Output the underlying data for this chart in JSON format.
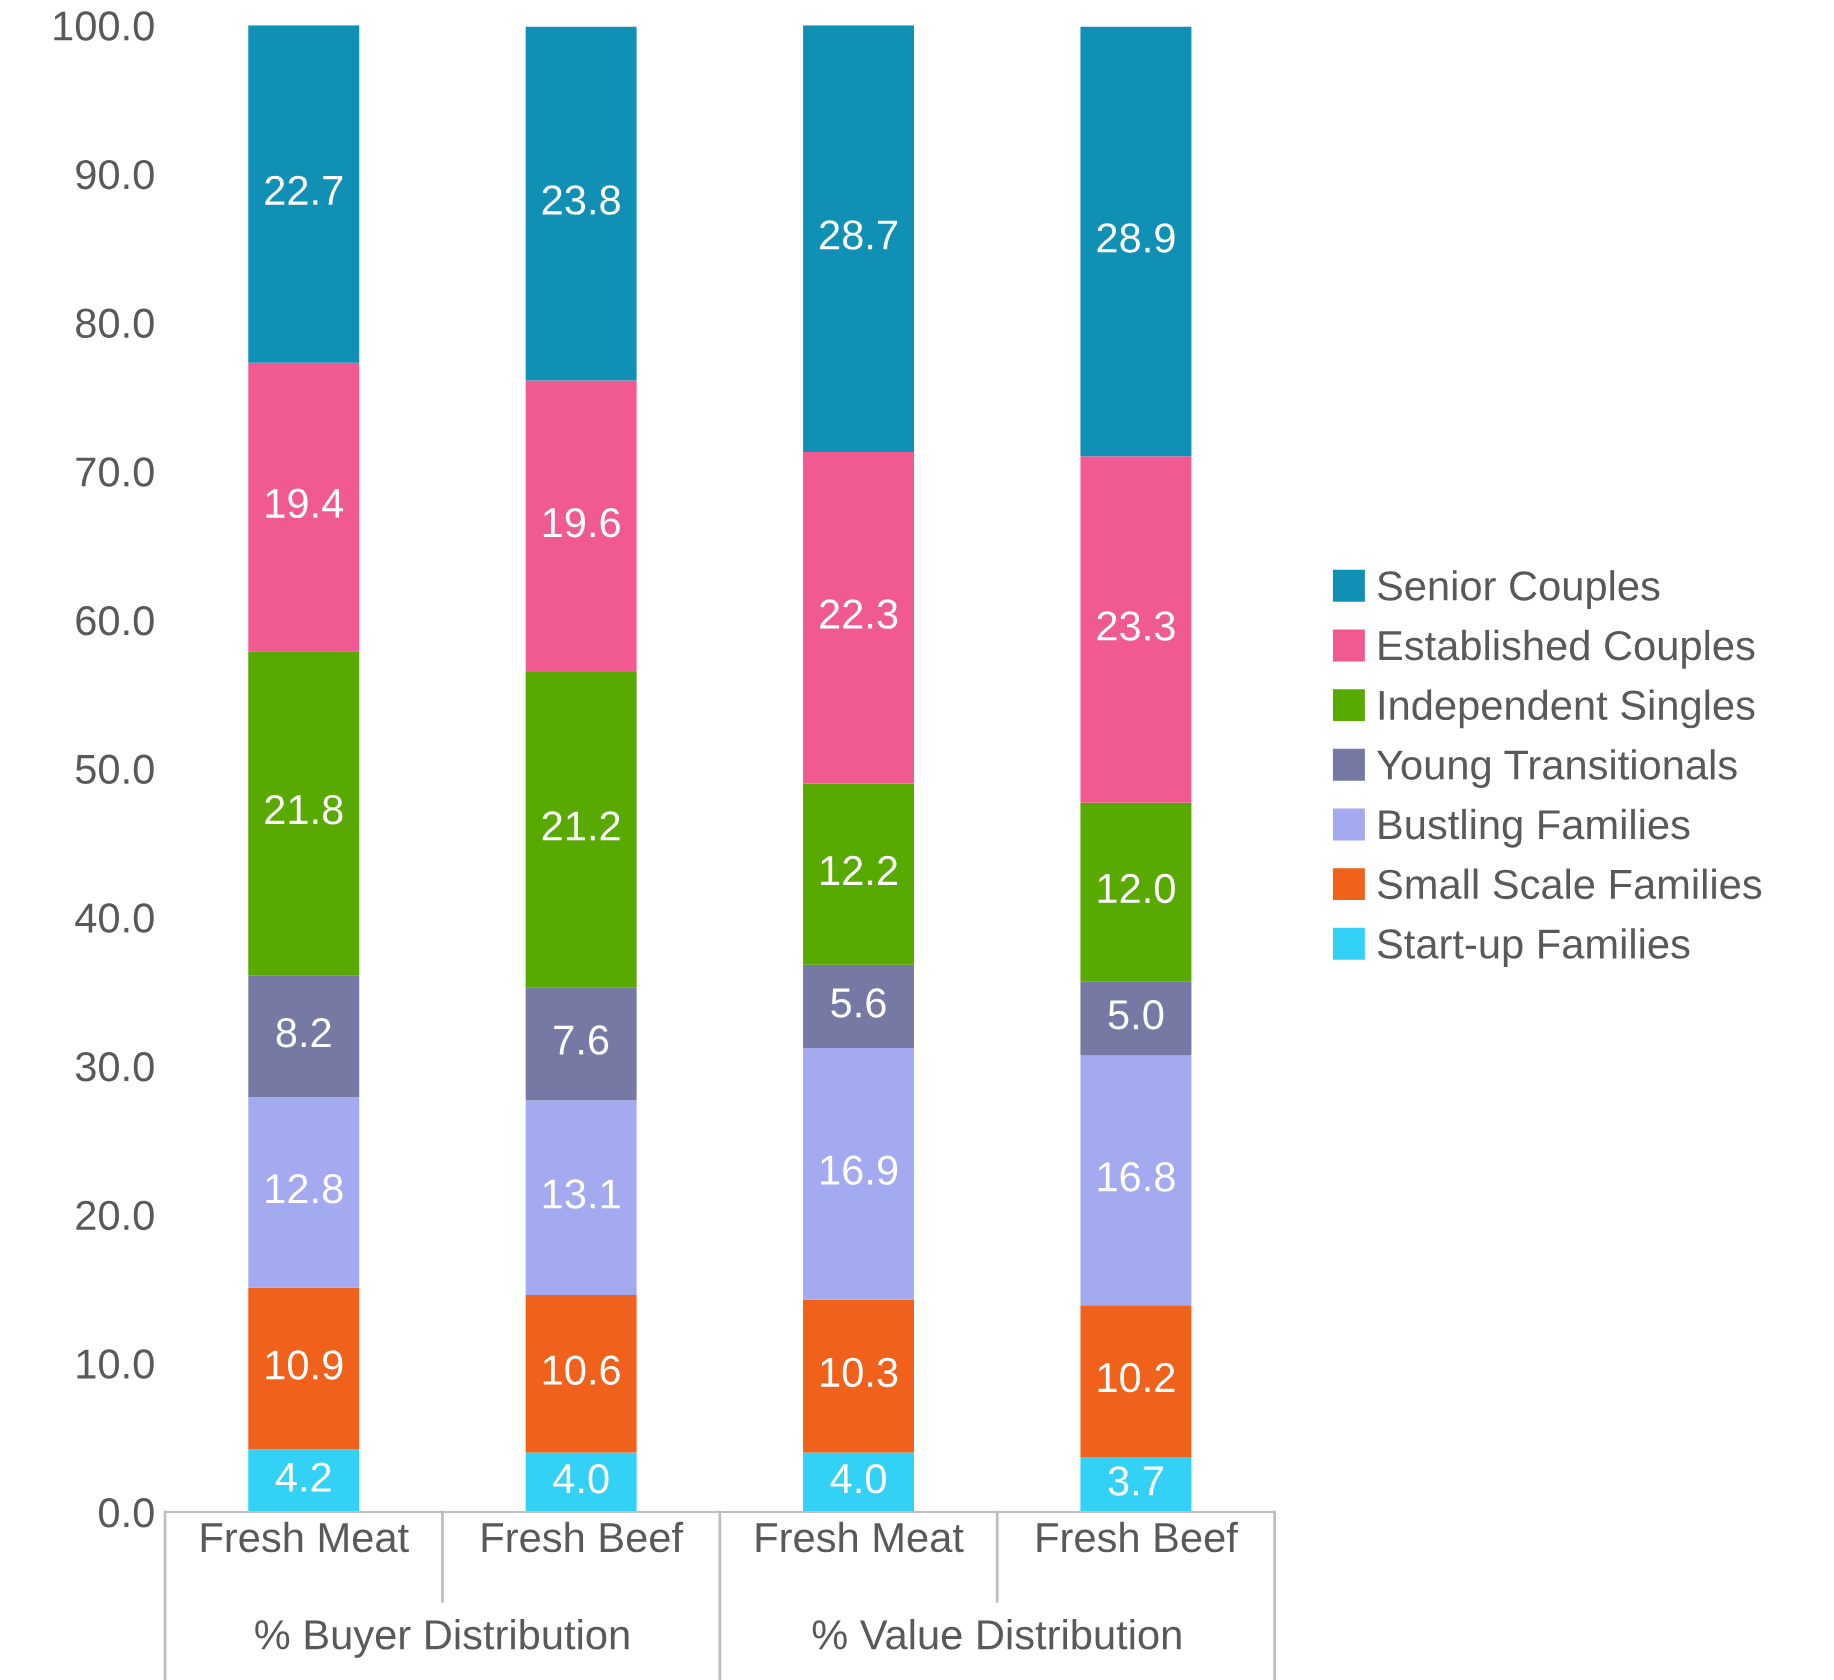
{
  "chart_data": {
    "type": "bar",
    "stacked": true,
    "legend": "right",
    "grid": false,
    "categories": [
      "Fresh Meat",
      "Fresh Beef",
      "Fresh Meat",
      "Fresh Beef"
    ],
    "annotations": [
      "% Buyer Distribution",
      "% Value Distribution"
    ],
    "ylim": [
      0,
      100
    ],
    "yticks": [
      {
        "value": 0,
        "label": "0.0"
      },
      {
        "value": 10,
        "label": "10.0"
      },
      {
        "value": 20,
        "label": "20.0"
      },
      {
        "value": 30,
        "label": "30.0"
      },
      {
        "value": 40,
        "label": "40.0"
      },
      {
        "value": 50,
        "label": "50.0"
      },
      {
        "value": 60,
        "label": "60.0"
      },
      {
        "value": 70,
        "label": "70.0"
      },
      {
        "value": 80,
        "label": "80.0"
      },
      {
        "value": 90,
        "label": "90.0"
      },
      {
        "value": 100,
        "label": "100.0"
      }
    ],
    "series": [
      {
        "name": "Start-up Families",
        "color": "#33d1f5",
        "values": [
          4.2,
          4.0,
          4.0,
          3.7
        ],
        "value_labels": [
          "4.2",
          "4.0",
          "4.0",
          "3.7"
        ]
      },
      {
        "name": "Small Scale Families",
        "color": "#f0621c",
        "values": [
          10.9,
          10.6,
          10.3,
          10.2
        ],
        "value_labels": [
          "10.9",
          "10.6",
          "10.3",
          "10.2"
        ]
      },
      {
        "name": "Bustling Families",
        "color": "#a3aaf0",
        "values": [
          12.8,
          13.1,
          16.9,
          16.8
        ],
        "value_labels": [
          "12.8",
          "13.1",
          "16.9",
          "16.8"
        ]
      },
      {
        "name": "Young Transitionals",
        "color": "#7579a3",
        "values": [
          8.2,
          7.6,
          5.6,
          5.0
        ],
        "value_labels": [
          "8.2",
          "7.6",
          "5.6",
          "5.0"
        ]
      },
      {
        "name": "Independent Singles",
        "color": "#58a900",
        "values": [
          21.8,
          21.2,
          12.2,
          12.0
        ],
        "value_labels": [
          "21.8",
          "21.2",
          "12.2",
          "12.0"
        ]
      },
      {
        "name": "Established Couples",
        "color": "#f05a91",
        "values": [
          19.4,
          19.6,
          22.3,
          23.3
        ],
        "value_labels": [
          "19.4",
          "19.6",
          "22.3",
          "23.3"
        ]
      },
      {
        "name": "Senior Couples",
        "color": "#1090b4",
        "values": [
          22.7,
          23.8,
          28.7,
          28.9
        ],
        "value_labels": [
          "22.7",
          "23.8",
          "28.7",
          "28.9"
        ]
      }
    ]
  }
}
